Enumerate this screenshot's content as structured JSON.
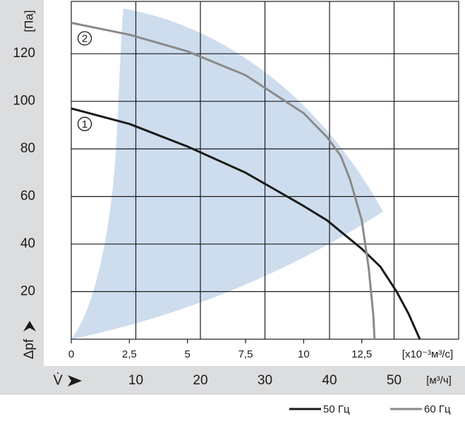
{
  "chart_data": {
    "type": "line",
    "y_label": "Δpf",
    "y_unit": "[Па]",
    "x_label": "[x10⁻³м³/с]",
    "x2_label": "V̇",
    "x2_unit": "[м³/ч]",
    "xlim": [
      0,
      16.67
    ],
    "xticks": [
      0,
      {
        "value": 2.5,
        "label": "2,5"
      },
      5,
      {
        "value": 7.5,
        "label": "7,5"
      },
      10,
      {
        "value": 12.5,
        "label": "12,5"
      }
    ],
    "x2lim": [
      0,
      60
    ],
    "x2ticks": [
      10,
      20,
      30,
      40,
      50
    ],
    "ylim": [
      0,
      142
    ],
    "yticks": [
      20,
      40,
      60,
      80,
      100,
      120
    ],
    "grid": true,
    "series": [
      {
        "name": "50 Гц",
        "label": "1",
        "color": "#1a1a1a",
        "x": [
          0,
          2.5,
          5,
          7.5,
          10,
          11,
          12,
          12.5,
          13.3,
          14,
          14.5,
          15
        ],
        "values": [
          97,
          90.5,
          81,
          70,
          56,
          50,
          42,
          38,
          30.5,
          20,
          11,
          0
        ]
      },
      {
        "name": "60 Гц",
        "label": "2",
        "color": "#8a8a8a",
        "x": [
          0,
          2.5,
          5,
          7.5,
          10,
          11,
          11.6,
          12,
          12.5,
          12.8,
          13.0,
          13.05
        ],
        "values": [
          133,
          128,
          121,
          111,
          95,
          85,
          77,
          67,
          50,
          30,
          10,
          0
        ]
      }
    ]
  }
}
